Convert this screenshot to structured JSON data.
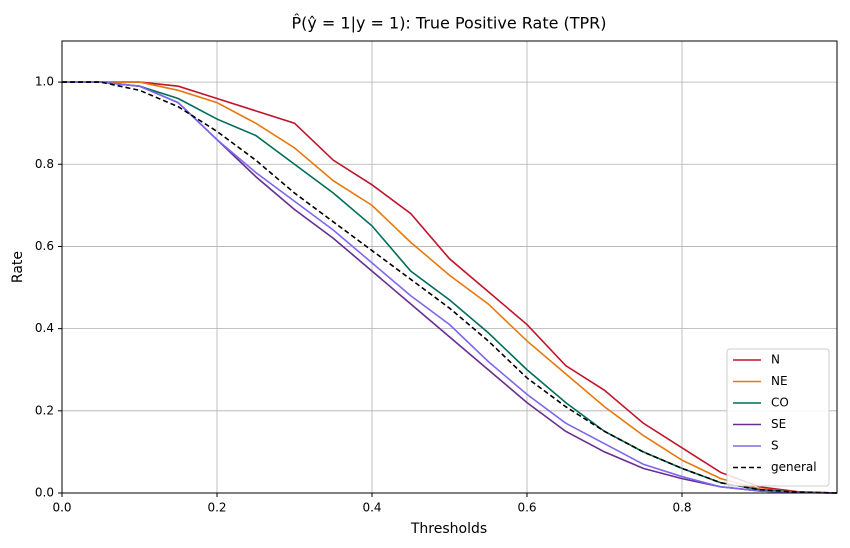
{
  "chart_data": {
    "type": "line",
    "title": "P̂(ŷ = 1|y = 1): True Positive Rate (TPR)",
    "x_label": "Thresholds",
    "y_label": "Rate",
    "x": [
      0,
      0.05,
      0.1,
      0.15,
      0.2,
      0.25,
      0.3,
      0.35,
      0.4,
      0.45,
      0.5,
      0.55,
      0.6,
      0.65,
      0.7,
      0.75,
      0.8,
      0.85,
      0.9,
      0.95,
      1.0
    ],
    "series": [
      {
        "name": "N",
        "color": "#c0142a",
        "linestyle": "solid",
        "values": [
          1,
          1,
          1,
          0.99,
          0.96,
          0.93,
          0.9,
          0.81,
          0.75,
          0.68,
          0.57,
          0.49,
          0.41,
          0.31,
          0.25,
          0.17,
          0.11,
          0.05,
          0.015,
          0.003,
          0
        ]
      },
      {
        "name": "NE",
        "color": "#e8780e",
        "linestyle": "solid",
        "values": [
          1,
          1,
          1,
          0.98,
          0.95,
          0.9,
          0.84,
          0.76,
          0.7,
          0.61,
          0.53,
          0.46,
          0.37,
          0.29,
          0.21,
          0.14,
          0.08,
          0.035,
          0.01,
          0.002,
          0
        ]
      },
      {
        "name": "CO",
        "color": "#006d5b",
        "linestyle": "solid",
        "values": [
          1,
          1,
          0.99,
          0.96,
          0.91,
          0.87,
          0.8,
          0.73,
          0.65,
          0.54,
          0.47,
          0.39,
          0.3,
          0.22,
          0.15,
          0.1,
          0.06,
          0.025,
          0.008,
          0.002,
          0
        ]
      },
      {
        "name": "SE",
        "color": "#6a2c91",
        "linestyle": "solid",
        "values": [
          1,
          1,
          0.99,
          0.95,
          0.86,
          0.77,
          0.69,
          0.62,
          0.54,
          0.46,
          0.38,
          0.3,
          0.22,
          0.15,
          0.1,
          0.06,
          0.035,
          0.015,
          0.005,
          0.001,
          0
        ]
      },
      {
        "name": "S",
        "color": "#7b68ee",
        "linestyle": "solid",
        "values": [
          1,
          1,
          0.99,
          0.95,
          0.86,
          0.78,
          0.71,
          0.64,
          0.56,
          0.48,
          0.41,
          0.32,
          0.24,
          0.17,
          0.12,
          0.07,
          0.04,
          0.015,
          0.005,
          0.001,
          0
        ]
      },
      {
        "name": "general",
        "color": "#000000",
        "linestyle": "dashed",
        "values": [
          1,
          1,
          0.98,
          0.94,
          0.88,
          0.81,
          0.73,
          0.66,
          0.59,
          0.52,
          0.45,
          0.37,
          0.28,
          0.21,
          0.15,
          0.1,
          0.06,
          0.025,
          0.008,
          0.002,
          0
        ]
      }
    ],
    "xlim": [
      0,
      1
    ],
    "ylim": [
      0,
      1.1
    ],
    "xticks": [
      {
        "value": 0,
        "label": "0.0"
      },
      0.2,
      0.4,
      0.6,
      0.8
    ],
    "yticks": [
      {
        "value": 0,
        "label": "0.0"
      },
      0.2,
      0.4,
      0.6,
      0.8,
      {
        "value": 1,
        "label": "1.0"
      }
    ],
    "grid": true,
    "legend_position": "lower right"
  }
}
